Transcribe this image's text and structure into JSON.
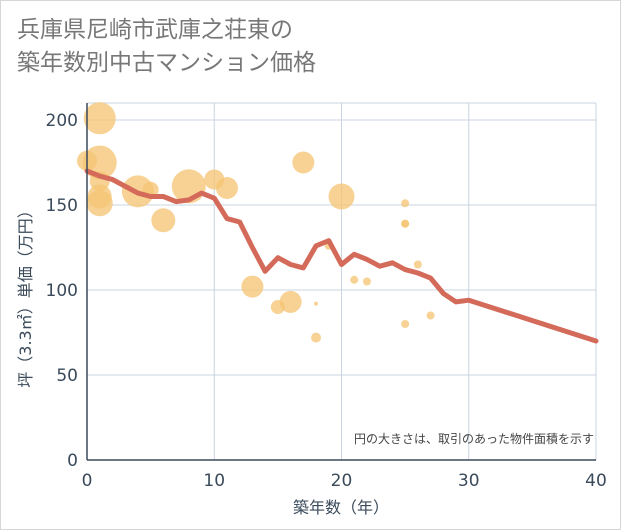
{
  "header": {
    "title_line1": "兵庫県尼崎市武庫之荘東の",
    "title_line2": "築年数別中古マンション価格"
  },
  "chart_data": {
    "type": "scatter",
    "xlabel": "築年数（年）",
    "ylabel": "坪（3.3㎡）単価（万円）",
    "xlim": [
      0,
      40
    ],
    "ylim": [
      0,
      210
    ],
    "xticks": [
      0,
      10,
      20,
      30,
      40
    ],
    "yticks": [
      0,
      50,
      100,
      150,
      200
    ],
    "note": "円の大きさは、取引のあった物件面積を示す",
    "colors": {
      "bubble": "#f5c576",
      "line": "#d46b5a",
      "grid": "#c8d4e2"
    },
    "points": [
      {
        "x": 0,
        "y": 176,
        "s": 10
      },
      {
        "x": 1,
        "y": 201,
        "s": 16
      },
      {
        "x": 1,
        "y": 175,
        "s": 17
      },
      {
        "x": 1,
        "y": 164,
        "s": 10
      },
      {
        "x": 1,
        "y": 155,
        "s": 12
      },
      {
        "x": 1,
        "y": 151,
        "s": 13
      },
      {
        "x": 4,
        "y": 158,
        "s": 16
      },
      {
        "x": 5,
        "y": 159,
        "s": 8
      },
      {
        "x": 6,
        "y": 141,
        "s": 12
      },
      {
        "x": 8,
        "y": 161,
        "s": 17
      },
      {
        "x": 10,
        "y": 165,
        "s": 10
      },
      {
        "x": 11,
        "y": 160,
        "s": 11
      },
      {
        "x": 13,
        "y": 102,
        "s": 11
      },
      {
        "x": 15,
        "y": 90,
        "s": 7
      },
      {
        "x": 16,
        "y": 93,
        "s": 11
      },
      {
        "x": 17,
        "y": 175,
        "s": 11
      },
      {
        "x": 18,
        "y": 92,
        "s": 2
      },
      {
        "x": 18,
        "y": 72,
        "s": 5
      },
      {
        "x": 19,
        "y": 126,
        "s": 4
      },
      {
        "x": 20,
        "y": 155,
        "s": 13
      },
      {
        "x": 21,
        "y": 106,
        "s": 4
      },
      {
        "x": 22,
        "y": 105,
        "s": 4
      },
      {
        "x": 25,
        "y": 151,
        "s": 4
      },
      {
        "x": 25,
        "y": 139,
        "s": 4
      },
      {
        "x": 25,
        "y": 139,
        "s": 4
      },
      {
        "x": 25,
        "y": 80,
        "s": 4
      },
      {
        "x": 26,
        "y": 115,
        "s": 4
      },
      {
        "x": 27,
        "y": 85,
        "s": 4
      }
    ],
    "trend": [
      [
        0,
        170
      ],
      [
        1,
        167
      ],
      [
        2,
        165
      ],
      [
        3,
        161
      ],
      [
        4,
        157
      ],
      [
        5,
        155
      ],
      [
        6,
        155
      ],
      [
        7,
        152
      ],
      [
        8,
        153
      ],
      [
        9,
        157
      ],
      [
        10,
        154
      ],
      [
        11,
        142
      ],
      [
        12,
        140
      ],
      [
        13,
        125
      ],
      [
        14,
        111
      ],
      [
        15,
        119
      ],
      [
        16,
        115
      ],
      [
        17,
        113
      ],
      [
        18,
        126
      ],
      [
        19,
        129
      ],
      [
        20,
        115
      ],
      [
        21,
        121
      ],
      [
        22,
        118
      ],
      [
        23,
        114
      ],
      [
        24,
        116
      ],
      [
        25,
        112
      ],
      [
        26,
        110
      ],
      [
        27,
        107
      ],
      [
        28,
        98
      ],
      [
        29,
        93
      ],
      [
        30,
        94
      ],
      [
        40,
        70
      ]
    ]
  }
}
